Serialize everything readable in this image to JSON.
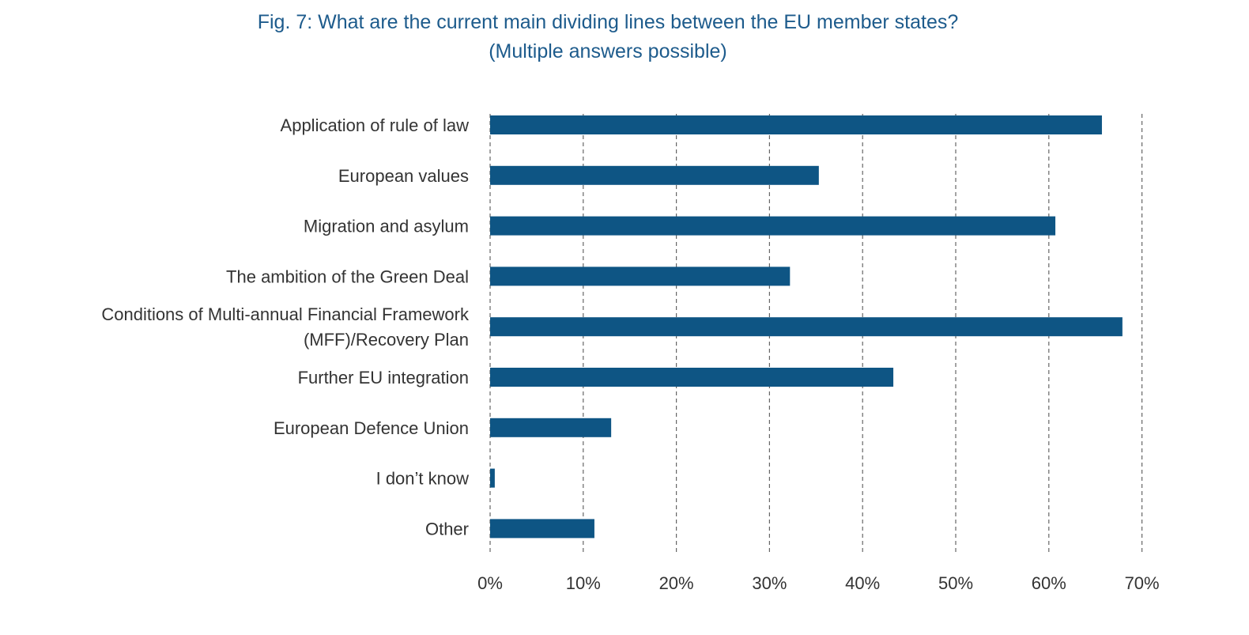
{
  "figure": {
    "title_line1": "Fig. 7: What are the current main dividing lines between the EU member states?",
    "title_line2": "(Multiple answers possible)"
  },
  "chart_data": {
    "type": "bar",
    "orientation": "horizontal",
    "title": "Fig. 7: What are the current main dividing lines between the EU member states? (Multiple answers possible)",
    "xlabel": "",
    "ylabel": "",
    "categories": [
      [
        "Application of rule of law"
      ],
      [
        "European values"
      ],
      [
        "Migration and asylum"
      ],
      [
        "The ambition of the Green Deal"
      ],
      [
        "Conditions of Multi-annual Financial Framework",
        "(MFF)/Recovery Plan"
      ],
      [
        "Further EU integration"
      ],
      [
        "European Defence Union"
      ],
      [
        "I don’t know"
      ],
      [
        "Other"
      ]
    ],
    "values": [
      65.7,
      35.3,
      60.7,
      32.2,
      67.9,
      43.3,
      13.0,
      0.5,
      11.2
    ],
    "value_unit": "%",
    "xlim": [
      0,
      70
    ],
    "xticks": [
      0,
      10,
      20,
      30,
      40,
      50,
      60,
      70
    ],
    "xtick_labels": [
      "0%",
      "10%",
      "20%",
      "30%",
      "40%",
      "50%",
      "60%",
      "70%"
    ],
    "grid": "vertical dashed",
    "legend": "none",
    "bar_color": "#0e5584",
    "grid_color": "#666666",
    "text_color": "#333333"
  }
}
